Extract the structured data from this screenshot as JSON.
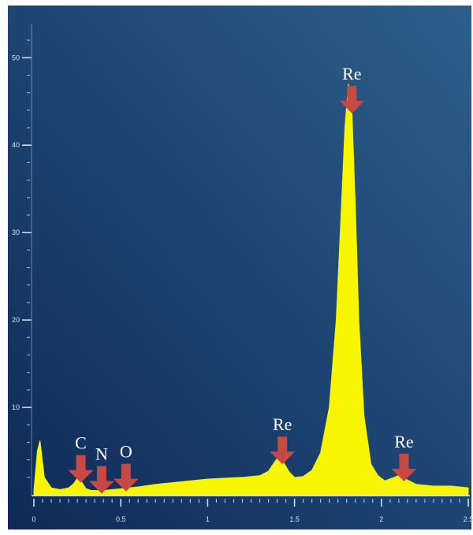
{
  "chart_data": {
    "type": "area",
    "title": "",
    "xlabel": "",
    "ylabel": "",
    "xlim": [
      0,
      2.5
    ],
    "ylim": [
      0,
      53
    ],
    "grid": false,
    "legend": "none",
    "x_ticks": [
      0,
      0.5,
      1,
      1.5,
      2,
      2.5
    ],
    "x_tick_labels": [
      "0",
      "0.5",
      "1",
      "1.5",
      "2",
      "2.5"
    ],
    "y_ticks": [
      10,
      20,
      30,
      40,
      50
    ],
    "y_tick_labels": [
      "10",
      "20",
      "30",
      "40",
      "50"
    ],
    "series": [
      {
        "x": [
          0.0,
          0.02,
          0.035,
          0.06,
          0.1,
          0.15,
          0.2,
          0.23,
          0.26,
          0.28,
          0.3,
          0.33,
          0.4,
          0.5,
          0.6,
          0.7,
          0.8,
          0.9,
          1.0,
          1.1,
          1.2,
          1.3,
          1.35,
          1.38,
          1.41,
          1.44,
          1.47,
          1.5,
          1.55,
          1.6,
          1.65,
          1.7,
          1.74,
          1.77,
          1.79,
          1.81,
          1.83,
          1.85,
          1.87,
          1.9,
          1.94,
          1.98,
          2.02,
          2.06,
          2.1,
          2.14,
          2.2,
          2.3,
          2.4,
          2.5
        ],
        "values": [
          0.5,
          5.0,
          6.2,
          2.0,
          0.8,
          0.6,
          0.8,
          1.3,
          2.2,
          1.3,
          0.7,
          0.5,
          0.5,
          0.7,
          0.9,
          1.2,
          1.4,
          1.6,
          1.8,
          1.9,
          2.0,
          2.2,
          2.7,
          3.6,
          4.4,
          3.6,
          2.6,
          2.0,
          2.1,
          2.8,
          4.8,
          10.0,
          20.0,
          33.0,
          42.0,
          47.0,
          44.0,
          33.0,
          20.0,
          9.0,
          3.5,
          2.2,
          1.6,
          1.9,
          2.2,
          1.8,
          1.2,
          1.0,
          1.0,
          0.8
        ]
      }
    ],
    "annotations": [
      {
        "label": "C",
        "x": 0.27
      },
      {
        "label": "N",
        "x": 0.39
      },
      {
        "label": "O",
        "x": 0.53
      },
      {
        "label": "Re",
        "x": 1.43
      },
      {
        "label": "Re",
        "x": 1.83
      },
      {
        "label": "Re",
        "x": 2.13
      }
    ],
    "colors": {
      "background_start": "#0f2a57",
      "background_end": "#2d5f8c",
      "fill": "#f8f500",
      "arrow": "#c64a43",
      "text": "#ffffff"
    }
  }
}
